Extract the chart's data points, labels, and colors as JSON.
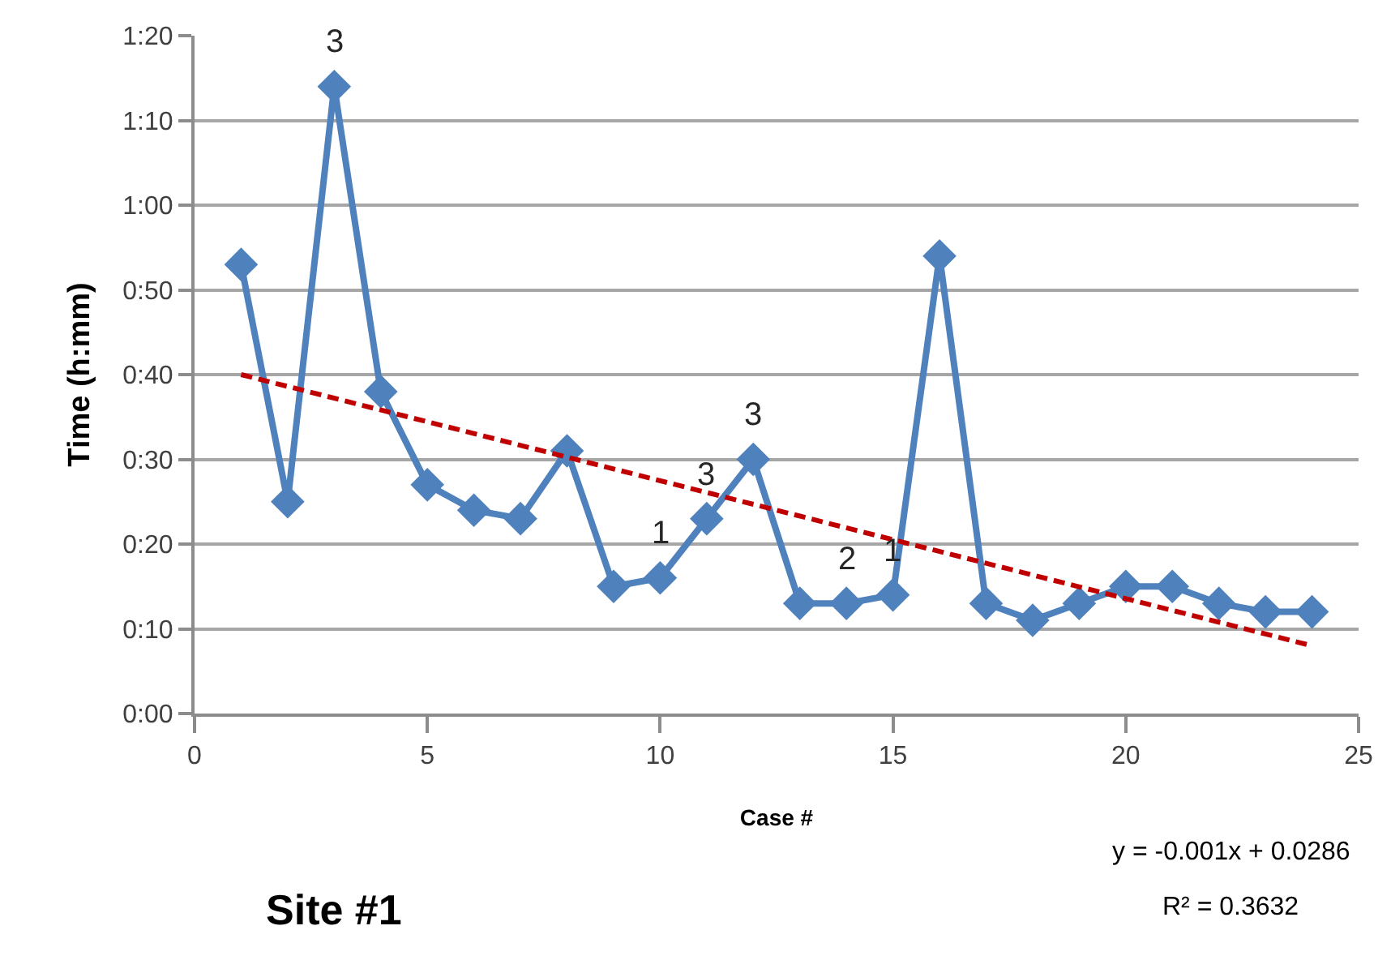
{
  "chart_data": {
    "type": "line",
    "xlabel": "Case #",
    "ylabel": "Time (h:mm)",
    "series": [
      {
        "color": "#4f81bd",
        "marker": "diamond",
        "x": [
          1,
          2,
          3,
          4,
          5,
          6,
          7,
          8,
          9,
          10,
          11,
          12,
          13,
          14,
          15,
          16,
          17,
          18,
          19,
          20,
          21,
          22,
          23,
          24
        ],
        "values": [
          53,
          25,
          74,
          38,
          27,
          24,
          23,
          31,
          15,
          16,
          23,
          30,
          13,
          13,
          14,
          54,
          13,
          11,
          13,
          15,
          15,
          13,
          12,
          12
        ]
      },
      {
        "type": "line",
        "color": "#c00000",
        "line_style": "dashed",
        "marker": "none",
        "x": [
          1,
          24
        ],
        "values": [
          40,
          8
        ]
      }
    ],
    "xlim": [
      0,
      25
    ],
    "xticks": [
      0,
      5,
      10,
      15,
      20,
      25
    ],
    "ylim": [
      0,
      80
    ],
    "yticks": [
      {
        "value": 0,
        "label": "0:00"
      },
      {
        "value": 10,
        "label": "0:10"
      },
      {
        "value": 20,
        "label": "0:20"
      },
      {
        "value": 30,
        "label": "0:30"
      },
      {
        "value": 40,
        "label": "0:40"
      },
      {
        "value": 50,
        "label": "0:50"
      },
      {
        "value": 60,
        "label": "1:00"
      },
      {
        "value": 70,
        "label": "1:10"
      },
      {
        "value": 80,
        "label": "1:20"
      }
    ],
    "grid": "y",
    "annotations": [
      {
        "text": "3",
        "x": 3,
        "y": 74
      },
      {
        "text": "1",
        "x": 10,
        "y": 16
      },
      {
        "text": "3",
        "x": 11,
        "y": 23
      },
      {
        "text": "3",
        "x": 12,
        "y": 30
      },
      {
        "text": "2",
        "x": 14,
        "y": 13
      },
      {
        "text": "1",
        "x": 15,
        "y": 14
      },
      "y = -0.001x + 0.0286",
      "R² = 0.3632",
      "Site #1"
    ]
  }
}
